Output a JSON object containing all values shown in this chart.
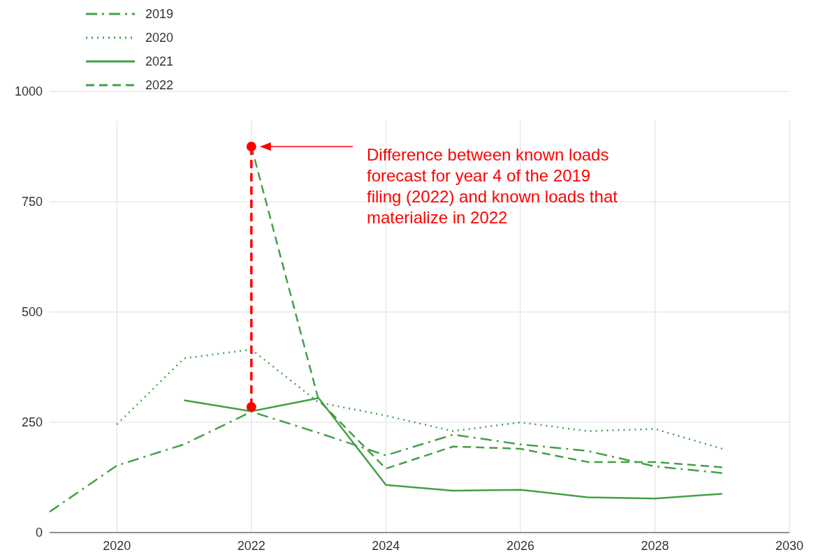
{
  "chart_data": {
    "type": "line",
    "xlim": [
      2019,
      2030
    ],
    "xticks": [
      2020,
      2022,
      2024,
      2026,
      2028,
      2030
    ],
    "ylim": [
      0,
      1000
    ],
    "yticks": [
      0,
      250,
      500,
      750,
      1000
    ],
    "grid": true,
    "legend": "top left",
    "series": [
      {
        "name": "2019",
        "color": "#43a047",
        "line_style": "dashdot",
        "x": [
          2019,
          2020,
          2021,
          2022,
          2023,
          2024,
          2025,
          2026,
          2027,
          2028,
          2029
        ],
        "values": [
          47,
          152,
          200,
          274,
          226,
          175,
          222,
          200,
          185,
          150,
          135
        ]
      },
      {
        "name": "2020",
        "color": "#43a047",
        "line_style": "dotted",
        "x": [
          2020,
          2021,
          2022,
          2023,
          2024,
          2025,
          2026,
          2027,
          2028,
          2029
        ],
        "values": [
          245,
          395,
          415,
          295,
          265,
          230,
          250,
          230,
          235,
          190
        ]
      },
      {
        "name": "2021",
        "color": "#43a047",
        "line_style": "solid",
        "x": [
          2021,
          2022,
          2023,
          2024,
          2025,
          2026,
          2027,
          2028,
          2029
        ],
        "values": [
          300,
          275,
          305,
          108,
          95,
          97,
          80,
          77,
          88
        ]
      },
      {
        "name": "2022",
        "color": "#43a047",
        "line_style": "dashed",
        "x": [
          2022,
          2023,
          2024,
          2025,
          2026,
          2027,
          2028,
          2029
        ],
        "values": [
          875,
          300,
          145,
          195,
          190,
          160,
          160,
          148
        ]
      },
      {
        "color": "#ff0000",
        "line_style": "dashed",
        "marker": "circle",
        "x": [
          2022,
          2022
        ],
        "values": [
          285,
          875
        ]
      }
    ],
    "annotations": [
      "Difference between known loads forecast for year 4 of the 2019 filing (2022) and known loads that materialize in 2022"
    ]
  }
}
